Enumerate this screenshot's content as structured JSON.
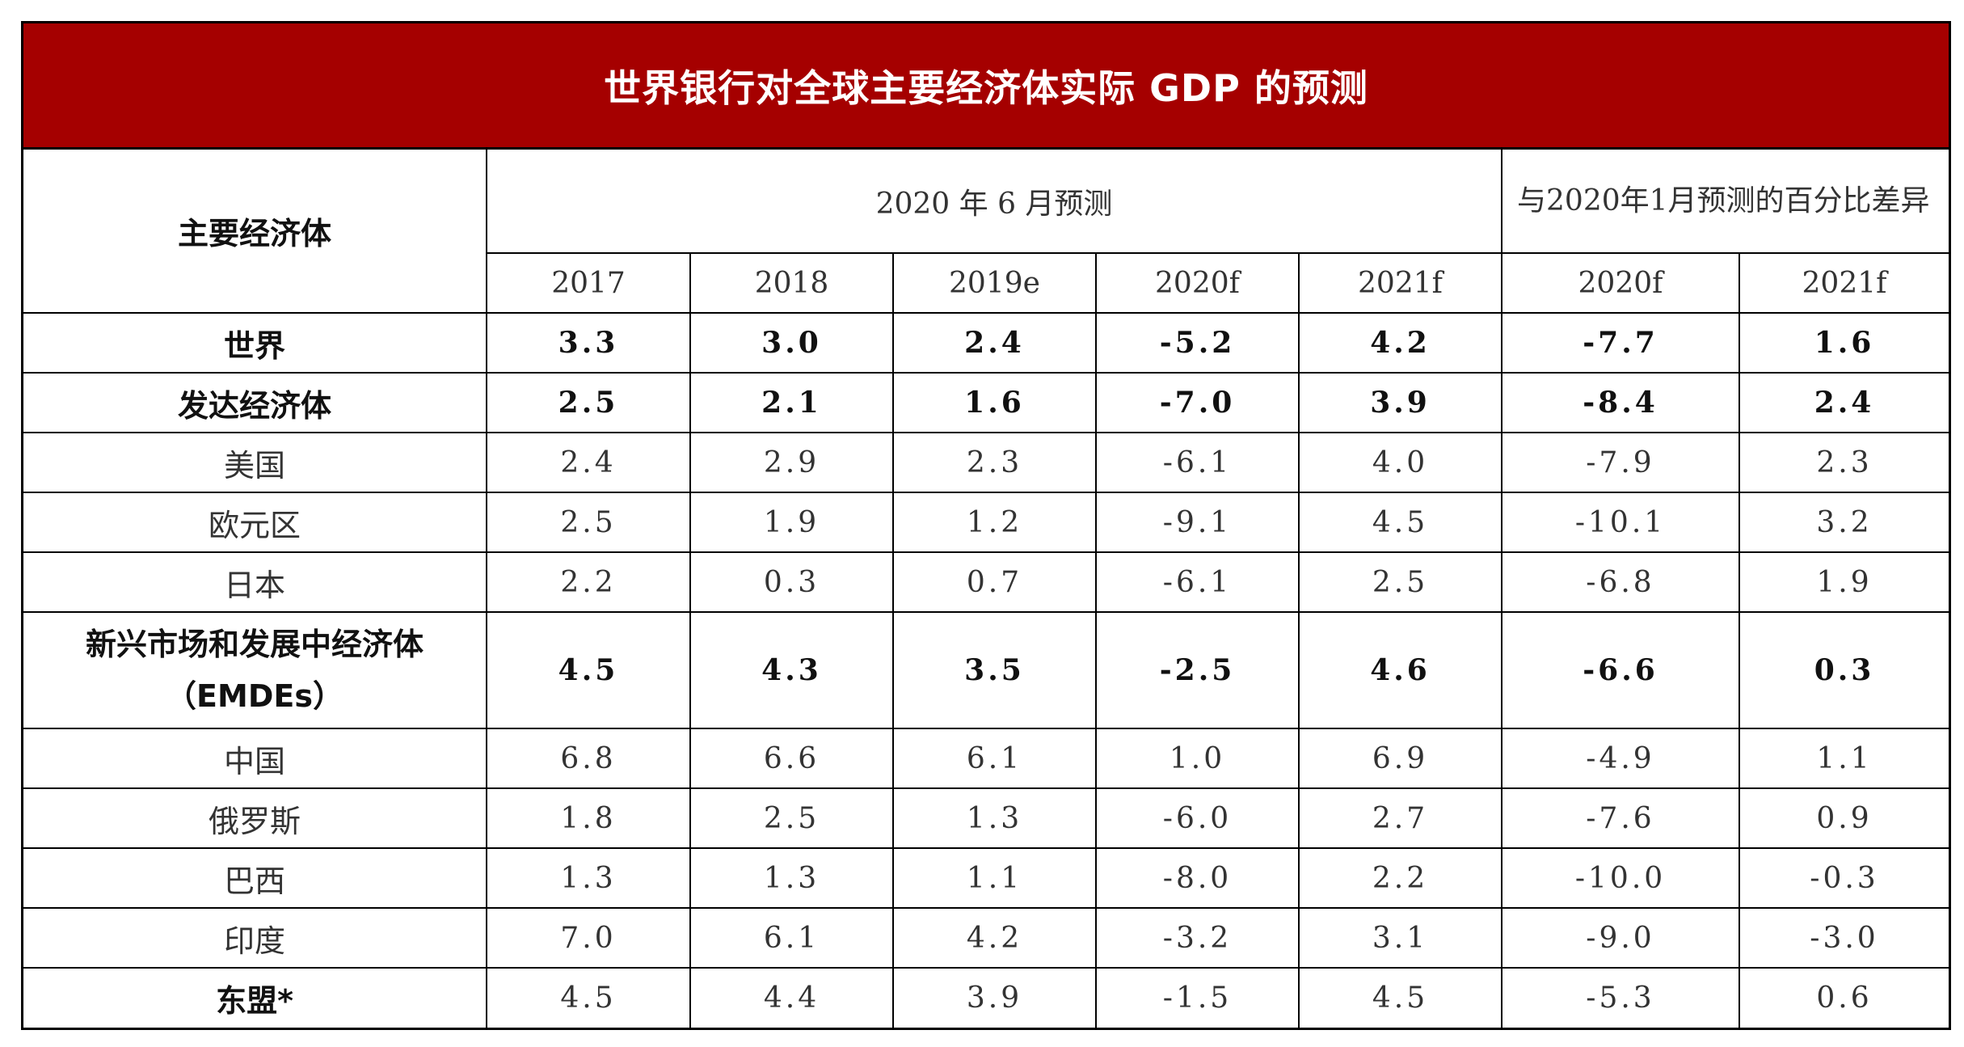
{
  "title": "世界银行对全球主要经济体实际 GDP 的预测",
  "headers": {
    "economy": "主要经济体",
    "group_june": "2020 年 6 月预测",
    "group_diff": "与2020年1月预测的百分比差异",
    "years": [
      "2017",
      "2018",
      "2019e",
      "2020f",
      "2021f",
      "2020f",
      "2021f"
    ]
  },
  "rows": [
    {
      "name": "世界",
      "bold": true,
      "values": [
        "3.3",
        "3.0",
        "2.4",
        "-5.2",
        "4.2",
        "-7.7",
        "1.6"
      ]
    },
    {
      "name": "发达经济体",
      "bold": true,
      "values": [
        "2.5",
        "2.1",
        "1.6",
        "-7.0",
        "3.9",
        "-8.4",
        "2.4"
      ]
    },
    {
      "name": "美国",
      "bold": false,
      "values": [
        "2.4",
        "2.9",
        "2.3",
        "-6.1",
        "4.0",
        "-7.9",
        "2.3"
      ]
    },
    {
      "name": "欧元区",
      "bold": false,
      "values": [
        "2.5",
        "1.9",
        "1.2",
        "-9.1",
        "4.5",
        "-10.1",
        "3.2"
      ]
    },
    {
      "name": "日本",
      "bold": false,
      "values": [
        "2.2",
        "0.3",
        "0.7",
        "-6.1",
        "2.5",
        "-6.8",
        "1.9"
      ]
    },
    {
      "name": "新兴市场和发展中经济体",
      "name2": "（EMDEs）",
      "bold": true,
      "values": [
        "4.5",
        "4.3",
        "3.5",
        "-2.5",
        "4.6",
        "-6.6",
        "0.3"
      ]
    },
    {
      "name": "中国",
      "bold": false,
      "values": [
        "6.8",
        "6.6",
        "6.1",
        "1.0",
        "6.9",
        "-4.9",
        "1.1"
      ]
    },
    {
      "name": "俄罗斯",
      "bold": false,
      "values": [
        "1.8",
        "2.5",
        "1.3",
        "-6.0",
        "2.7",
        "-7.6",
        "0.9"
      ]
    },
    {
      "name": "巴西",
      "bold": false,
      "values": [
        "1.3",
        "1.3",
        "1.1",
        "-8.0",
        "2.2",
        "-10.0",
        "-0.3"
      ]
    },
    {
      "name": "印度",
      "bold": false,
      "values": [
        "7.0",
        "6.1",
        "4.2",
        "-3.2",
        "3.1",
        "-9.0",
        "-3.0"
      ]
    },
    {
      "name": "东盟*",
      "bold": true,
      "boldValues": false,
      "values": [
        "4.5",
        "4.4",
        "3.9",
        "-1.5",
        "4.5",
        "-5.3",
        "0.6"
      ]
    }
  ]
}
